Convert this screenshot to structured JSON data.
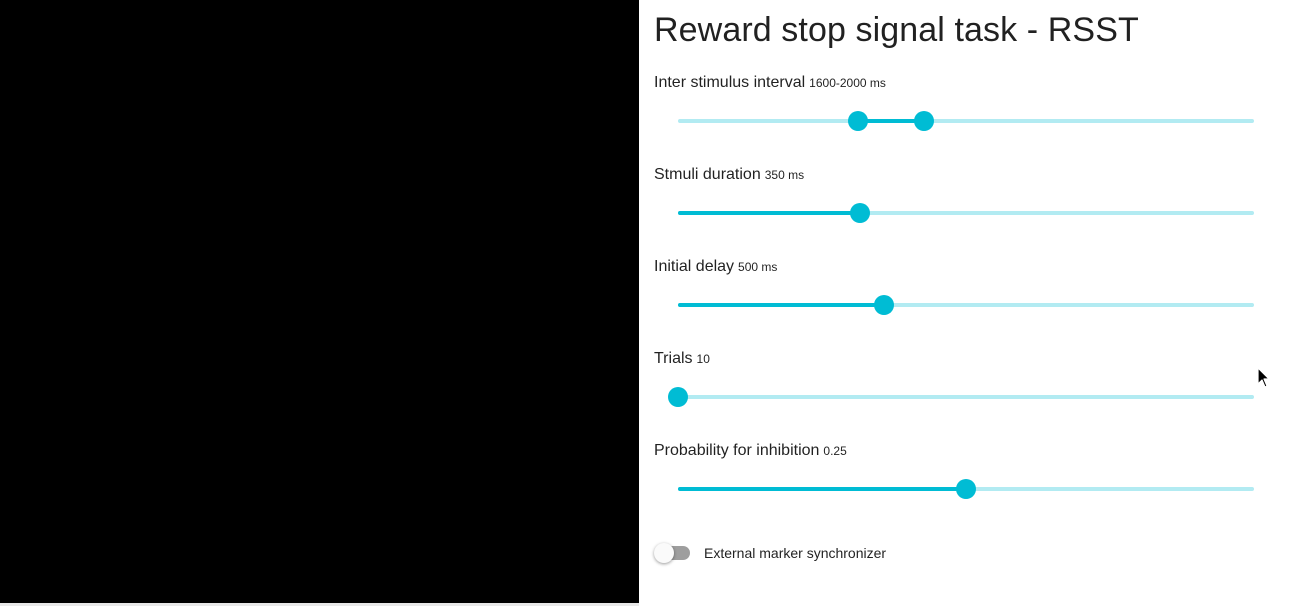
{
  "title": "Reward stop signal task - RSST",
  "colors": {
    "accent": "#00bcd4",
    "accent_light": "#b2ebf2",
    "canvas": "#000000",
    "switch_off": "#9e9e9e"
  },
  "settings": [
    {
      "label": "Inter stimulus interval",
      "value_text": "1600-2000 ms",
      "range": [
        0.313,
        0.427
      ]
    },
    {
      "label": "Stmuli duration",
      "value_text": "350 ms",
      "level": 0.316
    },
    {
      "label": "Initial delay",
      "value_text": "500 ms",
      "level": 0.357
    },
    {
      "label": "Trials",
      "value_text": "10",
      "level": 0.0
    },
    {
      "label": "Probability for inhibition",
      "value_text": "0.25",
      "level": 0.5
    }
  ],
  "toggle": {
    "label": "External marker synchronizer",
    "checked": false
  },
  "icons": {
    "cursor": "mouse-pointer-icon"
  }
}
